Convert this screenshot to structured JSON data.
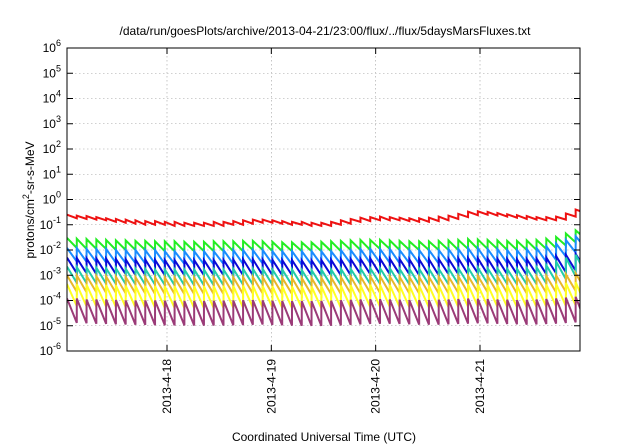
{
  "chart_data": {
    "type": "line",
    "title": "/data/run/goesPlots/archive/2013-04-21/23:00/flux/../flux/5daysMarsFluxes.txt",
    "xlabel": "Coordinated Universal Time (UTC)",
    "ylabel": "protons/cm2-sr-s-MeV",
    "y_scale": "log",
    "ylim": [
      1e-06,
      1000000.0
    ],
    "y_ticks": [
      {
        "value": 1e-06,
        "base": "10",
        "exp": "-6"
      },
      {
        "value": 1e-05,
        "base": "10",
        "exp": "-5"
      },
      {
        "value": 0.0001,
        "base": "10",
        "exp": "-4"
      },
      {
        "value": 0.001,
        "base": "10",
        "exp": "-3"
      },
      {
        "value": 0.01,
        "base": "10",
        "exp": "-2"
      },
      {
        "value": 0.1,
        "base": "10",
        "exp": "-1"
      },
      {
        "value": 1,
        "base": "10",
        "exp": "0"
      },
      {
        "value": 10,
        "base": "10",
        "exp": "1"
      },
      {
        "value": 100,
        "base": "10",
        "exp": "2"
      },
      {
        "value": 1000,
        "base": "10",
        "exp": "3"
      },
      {
        "value": 10000,
        "base": "10",
        "exp": "4"
      },
      {
        "value": 100000,
        "base": "10",
        "exp": "5"
      },
      {
        "value": 1000000,
        "base": "10",
        "exp": "6"
      }
    ],
    "xlim": [
      "2013-04-17 01:00",
      "2013-04-21 23:00"
    ],
    "x_ticks": [
      "2013-4-18",
      "2013-4-19",
      "2013-4-20",
      "2013-4-21"
    ],
    "grid": true,
    "legend": "none",
    "series": [
      {
        "color": "#ee1111",
        "x_start": "2013-04-17 01:00",
        "x_step_hours": 2.25,
        "peak": [
          0.25,
          0.23,
          0.22,
          0.2,
          0.18,
          0.17,
          0.16,
          0.15,
          0.14,
          0.14,
          0.13,
          0.13,
          0.12,
          0.12,
          0.12,
          0.13,
          0.13,
          0.14,
          0.15,
          0.16,
          0.16,
          0.15,
          0.14,
          0.13,
          0.13,
          0.12,
          0.12,
          0.13,
          0.15,
          0.17,
          0.19,
          0.2,
          0.21,
          0.2,
          0.19,
          0.18,
          0.18,
          0.19,
          0.21,
          0.23,
          0.27,
          0.33,
          0.34,
          0.32,
          0.29,
          0.26,
          0.24,
          0.22,
          0.2,
          0.2,
          0.21,
          0.28,
          0.4,
          0.55,
          0.75
        ],
        "trough": [
          0.18,
          0.17,
          0.16,
          0.15,
          0.13,
          0.12,
          0.11,
          0.1,
          0.1,
          0.1,
          0.09,
          0.09,
          0.09,
          0.09,
          0.09,
          0.09,
          0.1,
          0.1,
          0.11,
          0.12,
          0.12,
          0.11,
          0.1,
          0.1,
          0.09,
          0.09,
          0.09,
          0.1,
          0.11,
          0.13,
          0.14,
          0.15,
          0.15,
          0.15,
          0.14,
          0.13,
          0.13,
          0.14,
          0.15,
          0.17,
          0.2,
          0.24,
          0.25,
          0.23,
          0.21,
          0.19,
          0.17,
          0.16,
          0.15,
          0.15,
          0.16,
          0.21,
          0.29,
          0.4,
          0.55
        ]
      },
      {
        "color": "#22ee22",
        "x_start": "2013-04-17 01:00",
        "x_step_hours": 2.25,
        "peak": [
          0.03,
          0.028,
          0.027,
          0.026,
          0.025,
          0.024,
          0.024,
          0.023,
          0.023,
          0.022,
          0.022,
          0.022,
          0.021,
          0.021,
          0.021,
          0.022,
          0.022,
          0.022,
          0.023,
          0.023,
          0.022,
          0.021,
          0.02,
          0.02,
          0.02,
          0.02,
          0.021,
          0.022,
          0.023,
          0.024,
          0.025,
          0.025,
          0.025,
          0.024,
          0.023,
          0.022,
          0.022,
          0.022,
          0.023,
          0.024,
          0.025,
          0.027,
          0.026,
          0.025,
          0.024,
          0.023,
          0.023,
          0.024,
          0.025,
          0.028,
          0.033,
          0.045,
          0.06,
          0.075,
          0.09
        ],
        "trough": [
          0.012,
          0.011,
          0.011,
          0.011,
          0.01,
          0.01,
          0.01,
          0.01,
          0.01,
          0.009,
          0.009,
          0.009,
          0.009,
          0.009,
          0.009,
          0.009,
          0.009,
          0.009,
          0.01,
          0.01,
          0.009,
          0.009,
          0.009,
          0.009,
          0.009,
          0.009,
          0.009,
          0.009,
          0.01,
          0.01,
          0.01,
          0.011,
          0.011,
          0.01,
          0.01,
          0.01,
          0.01,
          0.01,
          0.01,
          0.01,
          0.011,
          0.011,
          0.011,
          0.011,
          0.01,
          0.01,
          0.01,
          0.01,
          0.011,
          0.012,
          0.015,
          0.02,
          0.028,
          0.035,
          0.045
        ]
      },
      {
        "color": "#1a8cff",
        "x_start": "2013-04-17 01:00",
        "x_step_hours": 2.25,
        "peak": [
          0.012,
          0.012,
          0.011,
          0.011,
          0.011,
          0.01,
          0.01,
          0.01,
          0.01,
          0.01,
          0.009,
          0.009,
          0.009,
          0.009,
          0.009,
          0.009,
          0.01,
          0.01,
          0.01,
          0.01,
          0.01,
          0.009,
          0.009,
          0.009,
          0.009,
          0.009,
          0.009,
          0.009,
          0.01,
          0.01,
          0.011,
          0.011,
          0.011,
          0.011,
          0.01,
          0.01,
          0.01,
          0.01,
          0.01,
          0.011,
          0.011,
          0.012,
          0.012,
          0.011,
          0.011,
          0.01,
          0.01,
          0.011,
          0.012,
          0.014,
          0.018,
          0.025,
          0.035,
          0.045,
          0.055
        ],
        "trough": [
          0.0035,
          0.0034,
          0.0033,
          0.0032,
          0.0031,
          0.003,
          0.003,
          0.0029,
          0.0029,
          0.0028,
          0.0028,
          0.0028,
          0.0027,
          0.0027,
          0.0027,
          0.0028,
          0.0028,
          0.0028,
          0.0029,
          0.0029,
          0.0028,
          0.0027,
          0.0027,
          0.0026,
          0.0026,
          0.0026,
          0.0027,
          0.0028,
          0.0029,
          0.003,
          0.003,
          0.0031,
          0.0031,
          0.003,
          0.003,
          0.0029,
          0.0029,
          0.0029,
          0.003,
          0.003,
          0.0031,
          0.0032,
          0.0032,
          0.0031,
          0.003,
          0.003,
          0.003,
          0.0031,
          0.0034,
          0.004,
          0.0055,
          0.008,
          0.012,
          0.016,
          0.02
        ]
      },
      {
        "color": "#0a0ad8",
        "x_start": "2013-04-17 01:00",
        "x_step_hours": 2.25,
        "peak": [
          0.005,
          0.0048,
          0.0047,
          0.0046,
          0.0045,
          0.0044,
          0.0043,
          0.0042,
          0.0042,
          0.0041,
          0.004,
          0.004,
          0.004,
          0.004,
          0.004,
          0.004,
          0.0041,
          0.0042,
          0.0043,
          0.0043,
          0.0042,
          0.0041,
          0.004,
          0.004,
          0.0039,
          0.0039,
          0.004,
          0.0041,
          0.0043,
          0.0044,
          0.0045,
          0.0046,
          0.0046,
          0.0045,
          0.0044,
          0.0043,
          0.0043,
          0.0043,
          0.0044,
          0.0045,
          0.0047,
          0.0048,
          0.0047,
          0.0046,
          0.0045,
          0.0044,
          0.0043,
          0.0044,
          0.0046,
          0.005,
          0.0058,
          0.0065,
          0.007,
          0.0075,
          0.008
        ],
        "trough": [
          0.0012,
          0.0012,
          0.0011,
          0.0011,
          0.0011,
          0.0011,
          0.001,
          0.001,
          0.001,
          0.001,
          0.001,
          0.001,
          0.001,
          0.001,
          0.001,
          0.001,
          0.001,
          0.001,
          0.001,
          0.001,
          0.001,
          0.001,
          0.001,
          0.001,
          0.001,
          0.001,
          0.001,
          0.001,
          0.001,
          0.0011,
          0.0011,
          0.0011,
          0.0011,
          0.0011,
          0.0011,
          0.001,
          0.001,
          0.001,
          0.0011,
          0.0011,
          0.0011,
          0.0012,
          0.0011,
          0.0011,
          0.0011,
          0.0011,
          0.001,
          0.0011,
          0.0011,
          0.0012,
          0.0013,
          0.0015,
          0.0017,
          0.0019,
          0.002
        ]
      },
      {
        "color": "#22ccaa",
        "x_start": "2013-04-17 01:00",
        "x_step_hours": 2.25,
        "peak": [
          0.0022,
          0.0021,
          0.002,
          0.002,
          0.0019,
          0.0019,
          0.0018,
          0.0018,
          0.0018,
          0.0017,
          0.0017,
          0.0017,
          0.0017,
          0.0017,
          0.0017,
          0.0017,
          0.0017,
          0.0018,
          0.0018,
          0.0018,
          0.0018,
          0.0017,
          0.0017,
          0.0017,
          0.0016,
          0.0016,
          0.0017,
          0.0017,
          0.0018,
          0.0018,
          0.0019,
          0.0019,
          0.0019,
          0.0019,
          0.0018,
          0.0018,
          0.0018,
          0.0018,
          0.0018,
          0.0019,
          0.0019,
          0.002,
          0.002,
          0.0019,
          0.0019,
          0.0018,
          0.0018,
          0.0019,
          0.0021,
          0.0025,
          0.0035,
          0.005,
          0.0065,
          0.008,
          0.01
        ],
        "trough": [
          0.0005,
          0.00048,
          0.00047,
          0.00046,
          0.00045,
          0.00044,
          0.00043,
          0.00042,
          0.00042,
          0.00041,
          0.0004,
          0.0004,
          0.0004,
          0.0004,
          0.0004,
          0.0004,
          0.00041,
          0.00042,
          0.00043,
          0.00043,
          0.00042,
          0.00041,
          0.0004,
          0.0004,
          0.00039,
          0.00039,
          0.0004,
          0.00041,
          0.00043,
          0.00044,
          0.00045,
          0.00046,
          0.00046,
          0.00045,
          0.00044,
          0.00043,
          0.00043,
          0.00043,
          0.00044,
          0.00045,
          0.00046,
          0.00047,
          0.00047,
          0.00046,
          0.00045,
          0.00044,
          0.00043,
          0.00044,
          0.00047,
          0.00055,
          0.0007,
          0.0009,
          0.0012,
          0.0015,
          0.0018
        ]
      },
      {
        "color": "#e8b82a",
        "x_start": "2013-04-17 01:00",
        "x_step_hours": 2.25,
        "peak": [
          0.001,
          0.001,
          0.00095,
          0.00093,
          0.0009,
          0.00088,
          0.00086,
          0.00085,
          0.00084,
          0.00083,
          0.00082,
          0.00081,
          0.0008,
          0.0008,
          0.0008,
          0.00081,
          0.00082,
          0.00083,
          0.00085,
          0.00086,
          0.00084,
          0.00082,
          0.0008,
          0.00079,
          0.00078,
          0.00078,
          0.0008,
          0.00082,
          0.00085,
          0.00088,
          0.0009,
          0.00092,
          0.00092,
          0.0009,
          0.00088,
          0.00086,
          0.00086,
          0.00086,
          0.00088,
          0.0009,
          0.00093,
          0.00096,
          0.00095,
          0.00093,
          0.0009,
          0.00088,
          0.00086,
          0.00087,
          0.0009,
          0.00095,
          0.001,
          0.0011,
          0.0012,
          0.0012,
          0.0013
        ],
        "trough": [
          0.00022,
          0.00021,
          0.00021,
          0.0002,
          0.0002,
          0.00019,
          0.00019,
          0.00019,
          0.00018,
          0.00018,
          0.00018,
          0.00018,
          0.00018,
          0.00018,
          0.00018,
          0.00018,
          0.00018,
          0.00018,
          0.00019,
          0.00019,
          0.00018,
          0.00018,
          0.00018,
          0.00017,
          0.00017,
          0.00017,
          0.00018,
          0.00018,
          0.00019,
          0.00019,
          0.0002,
          0.0002,
          0.0002,
          0.0002,
          0.00019,
          0.00019,
          0.00019,
          0.00019,
          0.00019,
          0.0002,
          0.0002,
          0.00021,
          0.00021,
          0.0002,
          0.0002,
          0.00019,
          0.00019,
          0.00019,
          0.0002,
          0.00021,
          0.00022,
          0.00024,
          0.00026,
          0.00027,
          0.00028
        ]
      },
      {
        "color": "#ffff22",
        "x_start": "2013-04-17 01:00",
        "x_step_hours": 2.25,
        "peak": [
          0.00045,
          0.00044,
          0.00043,
          0.00042,
          0.00041,
          0.0004,
          0.00039,
          0.00039,
          0.00038,
          0.00038,
          0.00037,
          0.00037,
          0.00037,
          0.00037,
          0.00037,
          0.00037,
          0.00038,
          0.00038,
          0.00039,
          0.00039,
          0.00038,
          0.00037,
          0.00037,
          0.00036,
          0.00036,
          0.00036,
          0.00037,
          0.00038,
          0.00039,
          0.0004,
          0.00041,
          0.00042,
          0.00042,
          0.00041,
          0.0004,
          0.00039,
          0.00039,
          0.00039,
          0.0004,
          0.00041,
          0.00042,
          0.00044,
          0.00043,
          0.00042,
          0.00041,
          0.0004,
          0.00039,
          0.0004,
          0.00041,
          0.00043,
          0.00046,
          0.0005,
          0.00053,
          0.00056,
          0.0006
        ],
        "trough": [
          6e-05,
          5.8e-05,
          5.7e-05,
          5.6e-05,
          5.5e-05,
          5.4e-05,
          5.3e-05,
          5.2e-05,
          5.2e-05,
          5.1e-05,
          5e-05,
          5e-05,
          5e-05,
          5e-05,
          5e-05,
          5e-05,
          5.1e-05,
          5.2e-05,
          5.3e-05,
          5.3e-05,
          5.2e-05,
          5.1e-05,
          5e-05,
          5e-05,
          4.9e-05,
          4.9e-05,
          5e-05,
          5.1e-05,
          5.3e-05,
          5.4e-05,
          5.5e-05,
          5.6e-05,
          5.6e-05,
          5.5e-05,
          5.4e-05,
          5.3e-05,
          5.3e-05,
          5.3e-05,
          5.4e-05,
          5.5e-05,
          5.6e-05,
          5.8e-05,
          5.7e-05,
          5.6e-05,
          5.5e-05,
          5.4e-05,
          5.3e-05,
          5.4e-05,
          5.6e-05,
          5.8e-05,
          6e-05,
          6.4e-05,
          6.8e-05,
          7.2e-05,
          7.6e-05
        ]
      },
      {
        "color": "#9b3b78",
        "x_start": "2013-04-17 01:00",
        "x_step_hours": 2.25,
        "peak": [
          0.00012,
          0.00012,
          0.00011,
          0.00011,
          0.00011,
          0.000105,
          0.0001,
          0.0001,
          0.0001,
          0.0001,
          9.8e-05,
          9.7e-05,
          9.6e-05,
          9.6e-05,
          9.6e-05,
          9.7e-05,
          9.9e-05,
          0.0001,
          0.000102,
          0.000104,
          0.000101,
          9.8e-05,
          9.6e-05,
          9.5e-05,
          9.4e-05,
          9.4e-05,
          9.6e-05,
          9.8e-05,
          0.000102,
          0.000106,
          0.00011,
          0.000112,
          0.000112,
          0.00011,
          0.000107,
          0.000104,
          0.000104,
          0.000104,
          0.000107,
          0.00011,
          0.000114,
          0.000118,
          0.000116,
          0.000113,
          0.00011,
          0.000107,
          0.000104,
          0.000106,
          0.00011,
          0.000115,
          0.00012,
          0.00013,
          0.00014,
          0.00015,
          0.00016
        ],
        "trough": [
          1.3e-05,
          1.25e-05,
          1.2e-05,
          1.18e-05,
          1.15e-05,
          1.12e-05,
          1.1e-05,
          1.08e-05,
          1.06e-05,
          1.05e-05,
          1.04e-05,
          1.03e-05,
          1.02e-05,
          1.02e-05,
          1.02e-05,
          1.03e-05,
          1.05e-05,
          1.07e-05,
          1.1e-05,
          1.12e-05,
          1.08e-05,
          1.05e-05,
          1.02e-05,
          1e-05,
          9.9e-06,
          9.9e-06,
          1.01e-05,
          1.04e-05,
          1.08e-05,
          1.13e-05,
          1.18e-05,
          1.2e-05,
          1.2e-05,
          1.18e-05,
          1.14e-05,
          1.11e-05,
          1.11e-05,
          1.11e-05,
          1.14e-05,
          1.18e-05,
          1.22e-05,
          1.26e-05,
          1.24e-05,
          1.2e-05,
          1.17e-05,
          1.14e-05,
          1.11e-05,
          1.13e-05,
          1.17e-05,
          1.22e-05,
          1.28e-05,
          1.36e-05,
          1.45e-05,
          1.55e-05,
          1.65e-05
        ]
      }
    ]
  }
}
